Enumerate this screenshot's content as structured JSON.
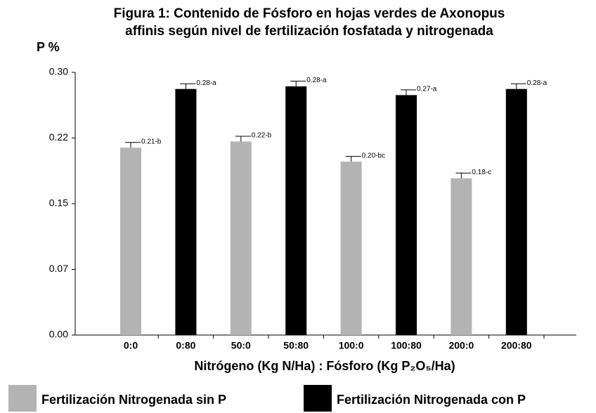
{
  "chart_data": {
    "type": "bar",
    "title": [
      "Figura 1: Contenido de Fósforo en  hojas verdes de Axonopus",
      "affinis según nivel de fertilización  fosfatada y nitrogenada"
    ],
    "y_label": "P %",
    "x_label": "Nitrógeno (Kg N/Ha) : Fósforo (Kg P₂O₅/Ha)",
    "categories": [
      "0:0",
      "0:80",
      "50:0",
      "50:80",
      "100:0",
      "100:80",
      "200:0",
      "200:80"
    ],
    "series": [
      {
        "name": "Fertilización Nitrogenada sin P",
        "color": "#b3b3b3",
        "values": [
          0.214,
          null,
          0.221,
          null,
          0.198,
          null,
          0.179,
          null
        ],
        "errors": [
          0.006,
          null,
          0.006,
          null,
          0.006,
          null,
          0.006,
          null
        ],
        "value_labels": [
          "0.21-b",
          null,
          "0.22-b",
          null,
          "0.20-bc",
          null,
          "0.18-c",
          null
        ]
      },
      {
        "name": "Fertilización Nitrogenada con P",
        "color": "#000000",
        "values": [
          null,
          0.281,
          null,
          0.284,
          null,
          0.274,
          null,
          0.281
        ],
        "errors": [
          null,
          0.006,
          null,
          0.006,
          null,
          0.006,
          null,
          0.006
        ],
        "value_labels": [
          null,
          "0.28-a",
          null,
          "0.28-a",
          null,
          "0.27-a",
          null,
          "0.28-a"
        ]
      }
    ],
    "ylim": [
      0,
      0.3
    ],
    "yticks": [
      {
        "value": 0,
        "label": "0.00"
      },
      {
        "value": 0.075,
        "label": "0.07"
      },
      0.15,
      {
        "value": 0.225,
        "label": "0.22"
      },
      {
        "value": 0.3,
        "label": "0.30"
      }
    ],
    "legend": "bottom"
  }
}
